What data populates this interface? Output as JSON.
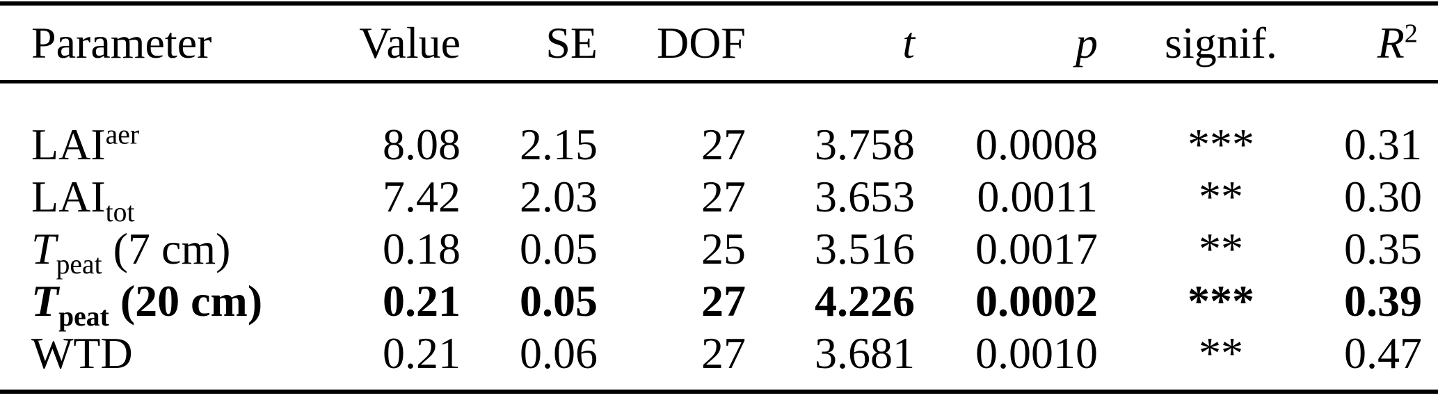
{
  "colors": {
    "text": "#000000",
    "background": "#ffffff",
    "rule": "#000000"
  },
  "table": {
    "headers": [
      {
        "key": "param",
        "label": "Parameter",
        "align": "left",
        "italic": false
      },
      {
        "key": "value",
        "label": "Value",
        "align": "right",
        "italic": false
      },
      {
        "key": "se",
        "label": "SE",
        "align": "right",
        "italic": false
      },
      {
        "key": "dof",
        "label": "DOF",
        "align": "right",
        "italic": false
      },
      {
        "key": "t",
        "label": "t",
        "align": "right",
        "italic": true
      },
      {
        "key": "p",
        "label": "p",
        "align": "right",
        "italic": true
      },
      {
        "key": "signif",
        "label": "signif.",
        "align": "center",
        "italic": false
      },
      {
        "key": "r2",
        "label": "R",
        "sup": "2",
        "align": "right",
        "italic": true
      }
    ],
    "rows": [
      {
        "bold": false,
        "param": [
          {
            "text": "LAI"
          },
          {
            "text": "aer",
            "sup": true
          }
        ],
        "value": "8.08",
        "se": "2.15",
        "dof": "27",
        "t": "3.758",
        "p": "0.0008",
        "signif": "***",
        "r2": "0.31"
      },
      {
        "bold": false,
        "param": [
          {
            "text": "LAI"
          },
          {
            "text": "tot",
            "sub": true
          }
        ],
        "value": "7.42",
        "se": "2.03",
        "dof": "27",
        "t": "3.653",
        "p": "0.0011",
        "signif": "**",
        "r2": "0.30"
      },
      {
        "bold": false,
        "param": [
          {
            "text": "T",
            "italic": true
          },
          {
            "text": "peat",
            "sub": true
          },
          {
            "text": " (7 cm)"
          }
        ],
        "value": "0.18",
        "se": "0.05",
        "dof": "25",
        "t": "3.516",
        "p": "0.0017",
        "signif": "**",
        "r2": "0.35"
      },
      {
        "bold": true,
        "param": [
          {
            "text": "T",
            "italic": true
          },
          {
            "text": "peat",
            "sub": true
          },
          {
            "text": " (20 cm)"
          }
        ],
        "value": "0.21",
        "se": "0.05",
        "dof": "27",
        "t": "4.226",
        "p": "0.0002",
        "signif": "***",
        "r2": "0.39"
      },
      {
        "bold": false,
        "param": [
          {
            "text": "WTD"
          }
        ],
        "value": "0.21",
        "se": "0.06",
        "dof": "27",
        "t": "3.681",
        "p": "0.0010",
        "signif": "**",
        "r2": "0.47"
      }
    ]
  }
}
